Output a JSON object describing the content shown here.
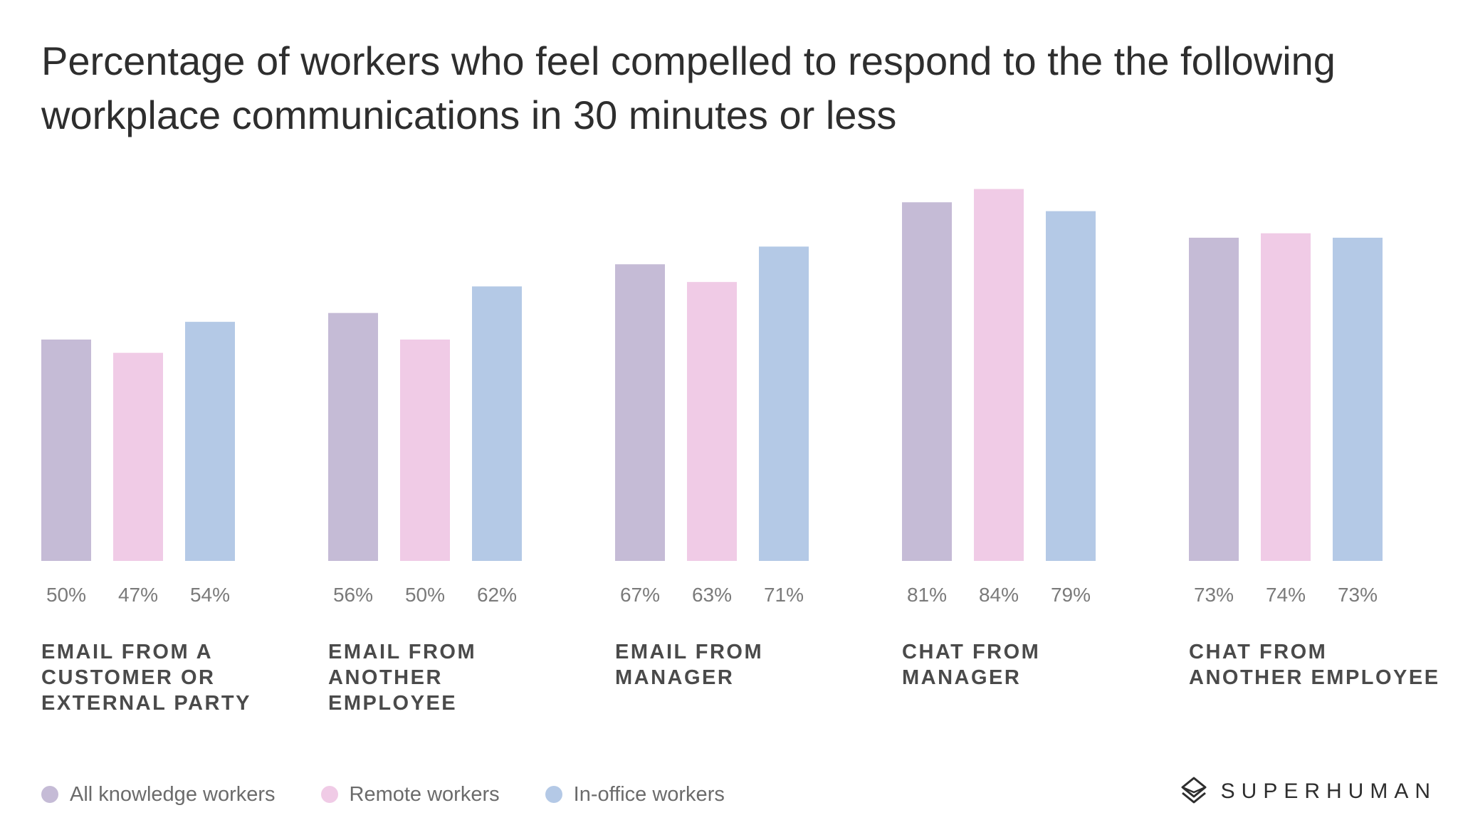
{
  "chart_data": {
    "type": "bar",
    "title": "Percentage of workers who feel compelled to respond to the the following workplace communications in 30 minutes or less",
    "categories": [
      [
        "EMAIL FROM A",
        "CUSTOMER OR",
        "EXTERNAL PARTY"
      ],
      [
        "EMAIL FROM",
        "ANOTHER",
        "EMPLOYEE"
      ],
      [
        "EMAIL FROM",
        "MANAGER"
      ],
      [
        "CHAT FROM",
        "MANAGER"
      ],
      [
        "CHAT FROM",
        "ANOTHER EMPLOYEE"
      ]
    ],
    "series": [
      {
        "name": "All knowledge workers",
        "color": "#c5bbd6",
        "values": [
          50,
          56,
          67,
          81,
          73
        ]
      },
      {
        "name": "Remote workers",
        "color": "#f0cbe6",
        "values": [
          47,
          50,
          63,
          84,
          74
        ]
      },
      {
        "name": "In-office workers",
        "color": "#b4c9e6",
        "values": [
          54,
          62,
          71,
          79,
          73
        ]
      }
    ],
    "value_suffix": "%",
    "xlabel": "",
    "ylabel": "",
    "ylim": [
      0,
      100
    ],
    "grid": false,
    "legend_position": "bottom-left"
  },
  "brand": {
    "name": "SUPERHUMAN",
    "icon": "superhuman-logo-icon"
  }
}
